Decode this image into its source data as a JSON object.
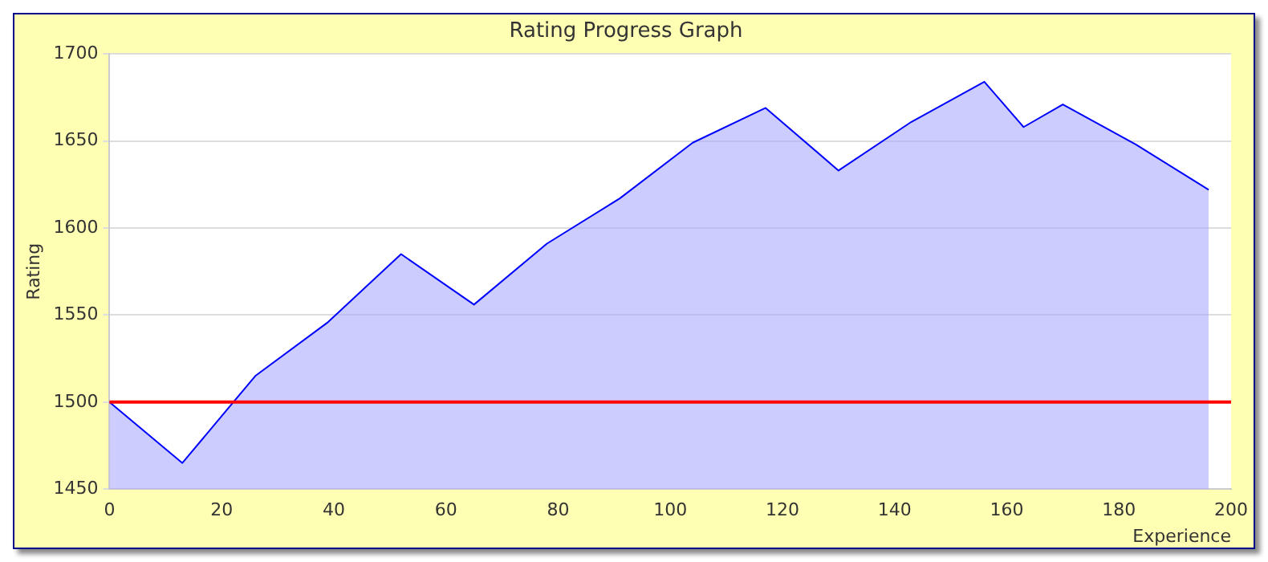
{
  "chart_data": {
    "type": "area",
    "title": "Rating Progress Graph",
    "xlabel": "Experience",
    "ylabel": "Rating",
    "x": [
      0,
      13,
      26,
      39,
      52,
      65,
      78,
      91,
      104,
      117,
      130,
      143,
      156,
      163,
      170,
      183,
      196
    ],
    "series": [
      {
        "color": "#0000ff",
        "values": [
          1500,
          1465,
          1515,
          1546,
          1585,
          1556,
          1591,
          1617,
          1649,
          1669,
          1633,
          1661,
          1684,
          1658,
          1671,
          1648,
          1622
        ]
      }
    ],
    "xlim": [
      0,
      200
    ],
    "xticks": [
      0,
      20,
      40,
      60,
      80,
      100,
      120,
      140,
      160,
      180,
      200
    ],
    "ylim": [
      1450,
      1700
    ],
    "yticks": [
      1450,
      1500,
      1550,
      1600,
      1650,
      1700
    ],
    "ref_lines": [
      {
        "axis": "y",
        "value": 1500,
        "color": "#ff0000"
      }
    ],
    "grid": "y",
    "legend": false
  }
}
